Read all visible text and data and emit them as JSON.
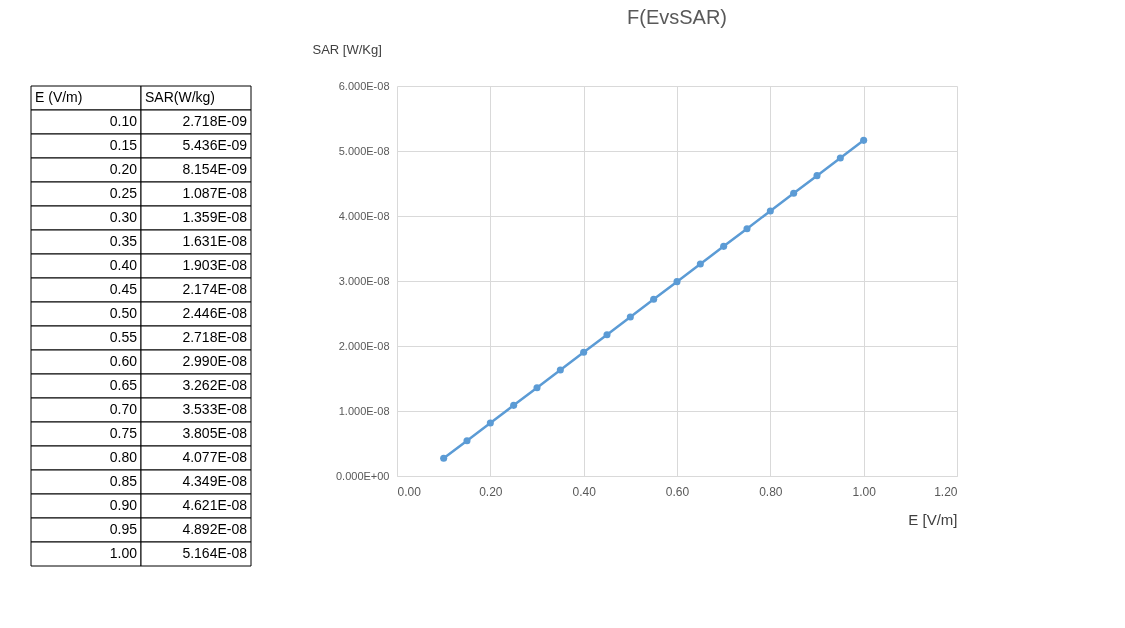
{
  "chart_data": {
    "type": "line",
    "title": "F(EvsSAR)",
    "xlabel": "E [V/m]",
    "ylabel": "SAR [W/Kg]",
    "annotations": [
      "E (V/m)",
      "SAR(W/kg)",
      "0.10",
      "2.718E-09",
      "0.15",
      "5.436E-09",
      "0.20",
      "8.154E-09",
      "0.25",
      "1.087E-08",
      "0.30",
      "1.359E-08",
      "0.35",
      "1.631E-08",
      "0.40",
      "1.903E-08",
      "0.45",
      "2.174E-08",
      "0.50",
      "2.446E-08",
      "0.55",
      "2.718E-08",
      "0.60",
      "2.990E-08",
      "0.65",
      "3.262E-08",
      "0.70",
      "3.533E-08",
      "0.75",
      "3.805E-08",
      "0.80",
      "4.077E-08",
      "0.85",
      "4.349E-08",
      "0.90",
      "4.621E-08",
      "0.95",
      "4.892E-08",
      "1.00",
      "5.164E-08"
    ],
    "x": [
      0.1,
      0.15,
      0.2,
      0.25,
      0.3,
      0.35,
      0.4,
      0.45,
      0.5,
      0.55,
      0.6,
      0.65,
      0.7,
      0.75,
      0.8,
      0.85,
      0.9,
      0.95,
      1.0
    ],
    "series": [
      {
        "color": "#5b9bd5",
        "values": [
          2.718e-09,
          5.436e-09,
          8.154e-09,
          1.087e-08,
          1.359e-08,
          1.631e-08,
          1.903e-08,
          2.174e-08,
          2.446e-08,
          2.718e-08,
          2.99e-08,
          3.262e-08,
          3.533e-08,
          3.805e-08,
          4.077e-08,
          4.349e-08,
          4.621e-08,
          4.892e-08,
          5.164e-08
        ]
      }
    ],
    "xlim": [
      0,
      1.2
    ],
    "xticks": [
      {
        "value": 0,
        "label": "0.00"
      },
      {
        "value": 0.2,
        "label": "0.20"
      },
      {
        "value": 0.4,
        "label": "0.40"
      },
      {
        "value": 0.6,
        "label": "0.60"
      },
      {
        "value": 0.8,
        "label": "0.80"
      },
      {
        "value": 1.0,
        "label": "1.00"
      },
      {
        "value": 1.2,
        "label": "1.20"
      }
    ],
    "ylim": [
      0,
      6e-08
    ],
    "yticks": [
      {
        "value": 0,
        "label": "0.000E+00"
      },
      {
        "value": 1e-08,
        "label": "1.000E-08"
      },
      {
        "value": 2e-08,
        "label": "2.000E-08"
      },
      {
        "value": 3e-08,
        "label": "3.000E-08"
      },
      {
        "value": 4e-08,
        "label": "4.000E-08"
      },
      {
        "value": 5e-08,
        "label": "5.000E-08"
      },
      {
        "value": 6e-08,
        "label": "6.000E-08"
      }
    ],
    "grid": true,
    "marker": "circle",
    "line_style": "solid"
  }
}
